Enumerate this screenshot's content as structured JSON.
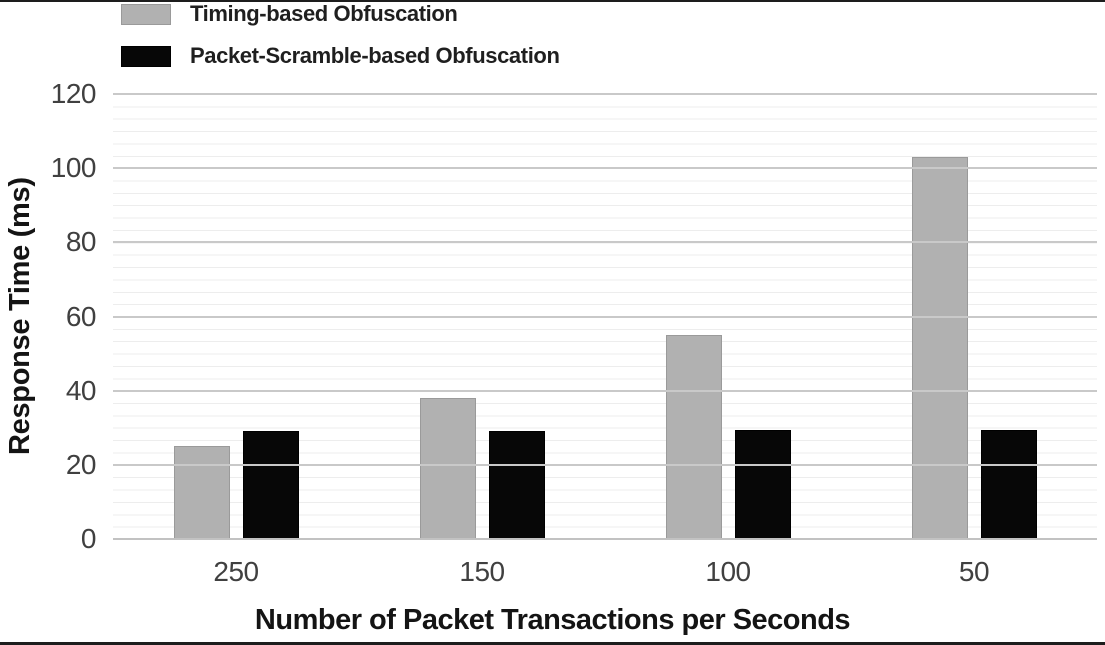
{
  "chart_data": {
    "type": "bar",
    "title": "",
    "categories": [
      "250",
      "150",
      "100",
      "50"
    ],
    "series": [
      {
        "name": "Timing-based Obfuscation",
        "color": "#b1b1b1",
        "border_color": "#9a9a9a",
        "values": [
          25,
          38,
          55,
          103
        ]
      },
      {
        "name": "Packet-Scramble-based Obfuscation",
        "color": "#070707",
        "border_color": "#000000",
        "values": [
          29,
          29,
          29.5,
          29.5
        ]
      }
    ],
    "xlabel": "Number of Packet Transactions per Seconds",
    "ylabel": "Response Time (ms)",
    "ylim": [
      0,
      120
    ],
    "yticks": [
      0,
      20,
      40,
      60,
      80,
      100,
      120
    ],
    "legend_position": "top-left",
    "grid": {
      "major": "horizontal, every 20 ms",
      "minor": "horizontal, 6 intervals per major",
      "major_color": "#c9c9c9",
      "minor_color": "#ededed",
      "baseline_color": "#c2c2c2"
    },
    "frame_rule_color": "#1d1d1d"
  }
}
